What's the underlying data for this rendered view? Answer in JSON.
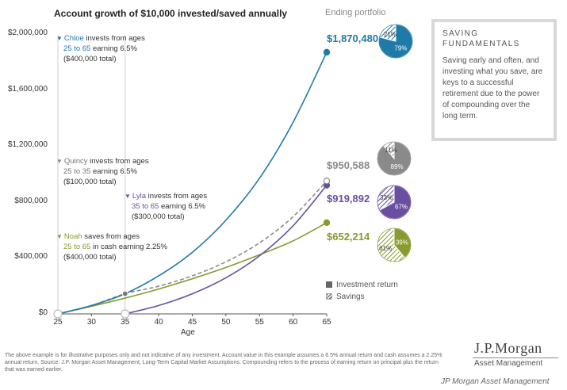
{
  "colors": {
    "chloe": "#1f7aa8",
    "quincy": "#8a8a8a",
    "lyla": "#6a4fa0",
    "noah": "#8a9a30",
    "axis": "#333333",
    "grid": "#dddddd"
  },
  "chart_data": {
    "type": "line",
    "title": "Account growth of $10,000 invested/saved annually",
    "xlabel": "Age",
    "ylabel": "",
    "x_ticks": [
      25,
      30,
      35,
      40,
      45,
      50,
      55,
      60,
      65
    ],
    "y_ticks": [
      0,
      400000,
      800000,
      1200000,
      1600000,
      2000000
    ],
    "y_tick_labels": [
      "$0",
      "$400,000",
      "$800,000",
      "$1,200,000",
      "$1,600,000",
      "$2,000,000"
    ],
    "xlim": [
      25,
      65
    ],
    "ylim": [
      0,
      2000000
    ],
    "series": [
      {
        "name": "Chloe",
        "key": "chloe",
        "style": "solid",
        "x": [
          25,
          30,
          35,
          40,
          45,
          50,
          55,
          60,
          65
        ],
        "values": [
          0,
          60000,
          144000,
          272000,
          440000,
          670000,
          970000,
          1370000,
          1870480
        ]
      },
      {
        "name": "Quincy",
        "key": "quincy",
        "style": "dashed",
        "x": [
          25,
          30,
          35,
          40,
          45,
          50,
          55,
          60,
          65
        ],
        "values": [
          0,
          60000,
          144000,
          198000,
          272000,
          372000,
          508000,
          695000,
          950588
        ]
      },
      {
        "name": "Lyla",
        "key": "lyla",
        "style": "solid",
        "x": [
          35,
          40,
          45,
          50,
          55,
          60,
          65
        ],
        "values": [
          0,
          60000,
          144000,
          258000,
          415000,
          630000,
          919892
        ]
      },
      {
        "name": "Noah",
        "key": "noah",
        "style": "solid",
        "x": [
          25,
          30,
          35,
          40,
          45,
          50,
          55,
          60,
          65
        ],
        "values": [
          0,
          54000,
          113000,
          178000,
          251000,
          332000,
          423000,
          522000,
          652214
        ]
      }
    ],
    "ending_portfolio_title": "Ending portfolio",
    "ending_values": [
      {
        "key": "chloe",
        "label": "$1,870,480",
        "investment_return_pct": 79,
        "savings_pct": 21,
        "labels": [
          "79%",
          "21%"
        ]
      },
      {
        "key": "quincy",
        "label": "$950,588",
        "investment_return_pct": 89,
        "savings_pct": 11,
        "labels": [
          "89%",
          "11%"
        ]
      },
      {
        "key": "lyla",
        "label": "$919,892",
        "investment_return_pct": 67,
        "savings_pct": 33,
        "labels": [
          "67%",
          "33%"
        ]
      },
      {
        "key": "noah",
        "label": "$652,214",
        "investment_return_pct": 39,
        "savings_pct": 61,
        "labels": [
          "39%",
          "61%"
        ]
      }
    ],
    "legend": [
      {
        "label": "Investment return",
        "pattern": "solid"
      },
      {
        "label": "Savings",
        "pattern": "hatched"
      }
    ]
  },
  "annotations": {
    "chloe": {
      "name": "Chloe",
      "line1_rest": " invests from ages",
      "line2_highlight": "25 to 65",
      "line2_rest": " earning 6.5%",
      "line3": "($400,000 total)"
    },
    "quincy": {
      "name": "Quincy",
      "line1_rest": " invests from ages",
      "line2_highlight": "25 to 35",
      "line2_rest": " earning 6.5%",
      "line3": "($100,000 total)"
    },
    "lyla": {
      "name": "Lyla",
      "line1_rest": " invests from ages",
      "line2_highlight": "35 to 65",
      "line2_rest": " earning 6.5%",
      "line3": "($300,000 total)"
    },
    "noah": {
      "name": "Noah",
      "line1_rest": " saves from ages",
      "line2_highlight": "25 to 65",
      "line2_rest": " in cash earning 2.25%",
      "line3": "($400,000 total)"
    }
  },
  "info_box": {
    "title": "SAVING FUNDAMENTALS",
    "body": "Saving early and often, and investing what you save, are keys to a successful retirement due to the power of compounding over the long term."
  },
  "footnote": "The above example is for illustrative purposes only and not indicative of any investment. Account value in this example assumes a 6.5% annual return and cash assumes a 2.25% annual return. Source: J.P. Morgan Asset Management, Long-Term Capital Market Assumptions. Compounding refers to the process of earning return on principal plus the return that was earned earlier.",
  "logo": {
    "main": "J.P.Morgan",
    "sub": "Asset Management"
  },
  "watermark": "JP Morgan Asset Management"
}
